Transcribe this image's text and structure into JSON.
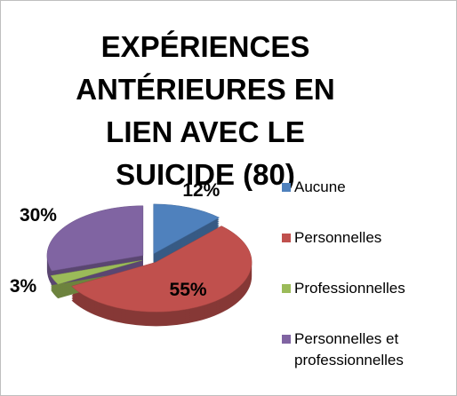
{
  "chart_data": {
    "type": "pie",
    "title": "EXPÉRIENCES ANTÉRIEURES EN LIEN AVEC LE SUICIDE (80)",
    "categories": [
      "Aucune",
      "Personnelles",
      "Professionnelles",
      "Personnelles et professionnelles"
    ],
    "values": [
      12,
      55,
      3,
      30
    ],
    "value_labels": [
      "12%",
      "55%",
      "3%",
      "30%"
    ],
    "colors": [
      "#4f81bd",
      "#c0504d",
      "#9bbb59",
      "#8064a2"
    ],
    "legend": "right"
  }
}
